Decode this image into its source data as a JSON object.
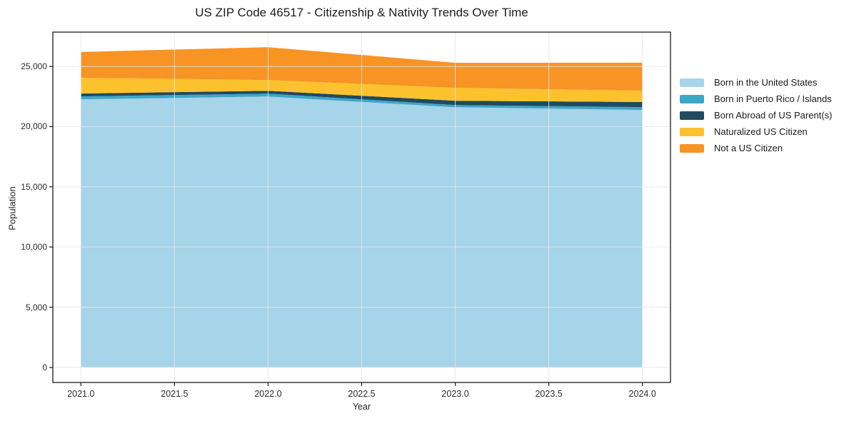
{
  "title": "US ZIP Code 46517 - Citizenship & Nativity Trends Over Time",
  "chart_data": {
    "type": "area",
    "stacked": true,
    "title": "US ZIP Code 46517 - Citizenship & Nativity Trends Over Time",
    "xlabel": "Year",
    "ylabel": "Population",
    "x": [
      2021,
      2022,
      2023,
      2024
    ],
    "series": [
      {
        "name": "Born in the United States",
        "color": "#a6d4e9",
        "values": [
          22270,
          22500,
          21610,
          21380
        ]
      },
      {
        "name": "Born in Puerto Rico / Islands",
        "color": "#3ea6c8",
        "values": [
          240,
          240,
          180,
          240
        ]
      },
      {
        "name": "Born Abroad of US Parent(s)",
        "color": "#1f4a5f",
        "values": [
          240,
          240,
          360,
          420
        ]
      },
      {
        "name": "Naturalized US Citizen",
        "color": "#fcc22e",
        "values": [
          1310,
          890,
          1070,
          950
        ]
      },
      {
        "name": "Not a US Citizen",
        "color": "#f79423",
        "values": [
          2140,
          2730,
          2080,
          2320
        ]
      }
    ],
    "totals": [
      26200,
      26600,
      25300,
      25310
    ],
    "xlim": [
      2020.85,
      2024.15
    ],
    "ylim": [
      -1250,
      27850
    ],
    "x_ticks": [
      2021.0,
      2021.5,
      2022.0,
      2022.5,
      2023.0,
      2023.5,
      2024.0
    ],
    "x_tick_labels": [
      "2021.0",
      "2021.5",
      "2022.0",
      "2022.5",
      "2023.0",
      "2023.5",
      "2024.0"
    ],
    "y_ticks": [
      0,
      5000,
      10000,
      15000,
      20000,
      25000
    ],
    "y_tick_labels": [
      "0",
      "5,000",
      "10,000",
      "15,000",
      "20,000",
      "25,000"
    ],
    "grid": true,
    "grid_color": "#e6e6e6",
    "spine_color": "#1a1a1a",
    "legend_position": "center right outside"
  }
}
